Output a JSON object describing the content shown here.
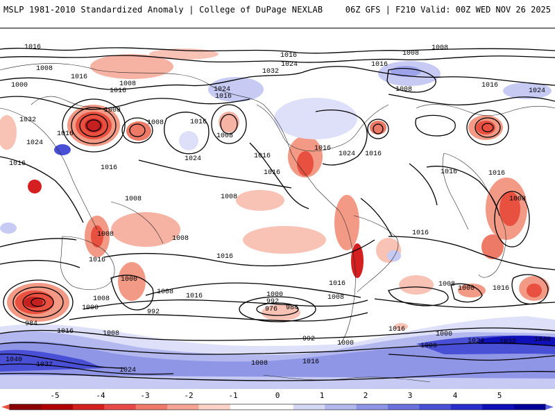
{
  "header": {
    "title_left": "MSLP 1981-2010 Standardized Anomaly | College of DuPage NEXLAB",
    "title_right": "06Z GFS | F210 Valid: 00Z WED NOV 26 2025"
  },
  "contour_labels": [
    {
      "text": "1016"
    },
    {
      "text": "1008"
    },
    {
      "text": "1008"
    },
    {
      "text": "1016"
    },
    {
      "text": "1032"
    },
    {
      "text": "1024"
    },
    {
      "text": "1016"
    },
    {
      "text": "1008"
    },
    {
      "text": "1008"
    },
    {
      "text": "1016"
    },
    {
      "text": "1024"
    },
    {
      "text": "1016"
    },
    {
      "text": "1016"
    },
    {
      "text": "1008"
    },
    {
      "text": "1008"
    },
    {
      "text": "1016"
    },
    {
      "text": "1032"
    },
    {
      "text": "1024"
    },
    {
      "text": "1016"
    },
    {
      "text": "1016"
    },
    {
      "text": "1024"
    },
    {
      "text": "1024"
    },
    {
      "text": "1016"
    },
    {
      "text": "1000"
    },
    {
      "text": "1008"
    },
    {
      "text": "1016"
    },
    {
      "text": "1008"
    },
    {
      "text": "1016"
    },
    {
      "text": "1024"
    },
    {
      "text": "1016"
    },
    {
      "text": "1016"
    },
    {
      "text": "1016"
    },
    {
      "text": "1008"
    },
    {
      "text": "1008"
    },
    {
      "text": "1016"
    },
    {
      "text": "1016"
    },
    {
      "text": "1008"
    },
    {
      "text": "1008"
    },
    {
      "text": "1016"
    },
    {
      "text": "1008"
    },
    {
      "text": "1000"
    },
    {
      "text": "1016"
    },
    {
      "text": "1016"
    },
    {
      "text": "1000"
    },
    {
      "text": "1008"
    },
    {
      "text": "984"
    },
    {
      "text": "992"
    },
    {
      "text": "1000"
    },
    {
      "text": "992"
    },
    {
      "text": "976"
    },
    {
      "text": "984"
    },
    {
      "text": "1016"
    },
    {
      "text": "1008"
    },
    {
      "text": "992"
    },
    {
      "text": "1000"
    },
    {
      "text": "1008"
    },
    {
      "text": "1016"
    },
    {
      "text": "1008"
    },
    {
      "text": "1000"
    },
    {
      "text": "1016"
    },
    {
      "text": "1000"
    },
    {
      "text": "1024"
    },
    {
      "text": "1032"
    },
    {
      "text": "1040"
    },
    {
      "text": "1016"
    },
    {
      "text": "1008"
    },
    {
      "text": "1016"
    },
    {
      "text": "1040"
    },
    {
      "text": "1032"
    },
    {
      "text": "1024"
    },
    {
      "text": "1008"
    },
    {
      "text": "1016"
    },
    {
      "text": "1008"
    }
  ],
  "colorbar": {
    "labels": [
      "-5",
      "-4",
      "-3",
      "-2",
      "-1",
      "0",
      "1",
      "2",
      "3",
      "4",
      "5"
    ],
    "colors": [
      "#8b0000",
      "#b00000",
      "#d42020",
      "#e84a4a",
      "#f07a6a",
      "#f5a595",
      "#fbd3c9",
      "#ffffff",
      "#ffffff",
      "#d6d9f5",
      "#b3b8ef",
      "#8f96e6",
      "#6b72de",
      "#4a50d6",
      "#2a2ecc",
      "#1010b8",
      "#00009a"
    ],
    "neg_color": "#e8503f",
    "pos_color": "#5a64e0"
  }
}
